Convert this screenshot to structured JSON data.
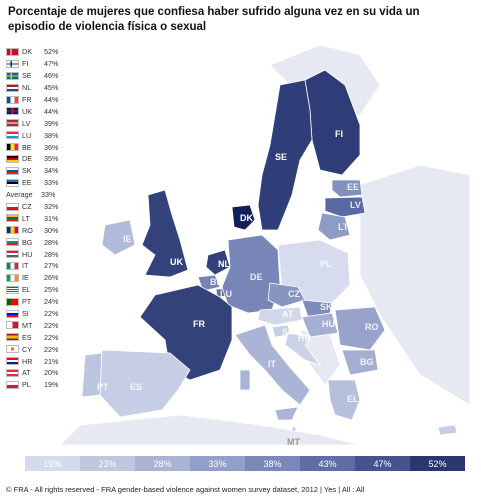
{
  "title": "Porcentaje de mujeres que confiesa haber sufrido alguna vez en su vida un episodio de violencia física o sexual",
  "legend": [
    {
      "code": "DK",
      "pct": "52%",
      "flag": "dk"
    },
    {
      "code": "FI",
      "pct": "47%",
      "flag": "fi"
    },
    {
      "code": "SE",
      "pct": "46%",
      "flag": "se"
    },
    {
      "code": "NL",
      "pct": "45%",
      "flag": "nl"
    },
    {
      "code": "FR",
      "pct": "44%",
      "flag": "fr"
    },
    {
      "code": "UK",
      "pct": "44%",
      "flag": "uk"
    },
    {
      "code": "LV",
      "pct": "39%",
      "flag": "lv"
    },
    {
      "code": "LU",
      "pct": "38%",
      "flag": "lu"
    },
    {
      "code": "BE",
      "pct": "36%",
      "flag": "be"
    },
    {
      "code": "DE",
      "pct": "35%",
      "flag": "de"
    },
    {
      "code": "SK",
      "pct": "34%",
      "flag": "sk"
    },
    {
      "code": "EE",
      "pct": "33%",
      "flag": "ee"
    },
    {
      "code": "Average",
      "pct": "33%",
      "flag": "none"
    },
    {
      "code": "CZ",
      "pct": "32%",
      "flag": "cz"
    },
    {
      "code": "LT",
      "pct": "31%",
      "flag": "lt"
    },
    {
      "code": "RO",
      "pct": "30%",
      "flag": "ro"
    },
    {
      "code": "BG",
      "pct": "28%",
      "flag": "bg"
    },
    {
      "code": "HU",
      "pct": "28%",
      "flag": "hu"
    },
    {
      "code": "IT",
      "pct": "27%",
      "flag": "it"
    },
    {
      "code": "IE",
      "pct": "26%",
      "flag": "ie"
    },
    {
      "code": "EL",
      "pct": "25%",
      "flag": "el"
    },
    {
      "code": "PT",
      "pct": "24%",
      "flag": "pt"
    },
    {
      "code": "SI",
      "pct": "22%",
      "flag": "si"
    },
    {
      "code": "MT",
      "pct": "22%",
      "flag": "mt"
    },
    {
      "code": "ES",
      "pct": "22%",
      "flag": "es"
    },
    {
      "code": "CY",
      "pct": "22%",
      "flag": "cy"
    },
    {
      "code": "HR",
      "pct": "21%",
      "flag": "hr"
    },
    {
      "code": "AT",
      "pct": "20%",
      "flag": "at"
    },
    {
      "code": "PL",
      "pct": "19%",
      "flag": "pl"
    }
  ],
  "map_labels": {
    "FI": "FI",
    "SE": "SE",
    "EE": "EE",
    "LV": "LV",
    "LT": "LT",
    "DK": "DK",
    "IE": "IE",
    "UK": "UK",
    "NL": "NL",
    "BE": "BE",
    "LU": "LU",
    "DE": "DE",
    "PL": "PL",
    "CZ": "CZ",
    "SK": "SK",
    "FR": "FR",
    "AT": "AT",
    "HU": "HU",
    "SI": "SI",
    "HR": "HR",
    "RO": "RO",
    "BG": "BG",
    "IT": "IT",
    "PT": "PT",
    "ES": "ES",
    "EL": "EL",
    "MT": "MT"
  },
  "scale": [
    "19%",
    "23%",
    "28%",
    "33%",
    "38%",
    "43%",
    "47%",
    "52%"
  ],
  "scale_colors": [
    "#d5dbea",
    "#bfc7df",
    "#a9b3d4",
    "#939fc8",
    "#7a87b8",
    "#5f6da6",
    "#45548f",
    "#2a3670"
  ],
  "map_colors": {
    "DK": "#12205a",
    "FI": "#2e3c78",
    "SE": "#2f3d79",
    "NL": "#32407b",
    "FR": "#34427c",
    "UK": "#34427c",
    "LV": "#5a69a2",
    "LU": "#6170a7",
    "BE": "#7583b5",
    "DE": "#7886b7",
    "SK": "#7e8cbb",
    "EE": "#8190be",
    "CZ": "#8795c1",
    "LT": "#8e9bc5",
    "RO": "#97a3ca",
    "BG": "#a4afd2",
    "HU": "#a4afd2",
    "IT": "#aab5d5",
    "IE": "#b0bad9",
    "EL": "#b6c0dc",
    "PT": "#bcc5df",
    "SI": "#c6cee5",
    "MT": "#c6cee5",
    "ES": "#c6cee5",
    "CY": "#c6cee5",
    "HR": "#ccd3e8",
    "AT": "#d1d8eb",
    "PL": "#d6dcee",
    "nonEU": "#e6e9f2",
    "sea": "#ffffff"
  },
  "footer": "© FRA - All rights reserved - FRA gender-based violence against women survey dataset, 2012 | Yes | All : All"
}
